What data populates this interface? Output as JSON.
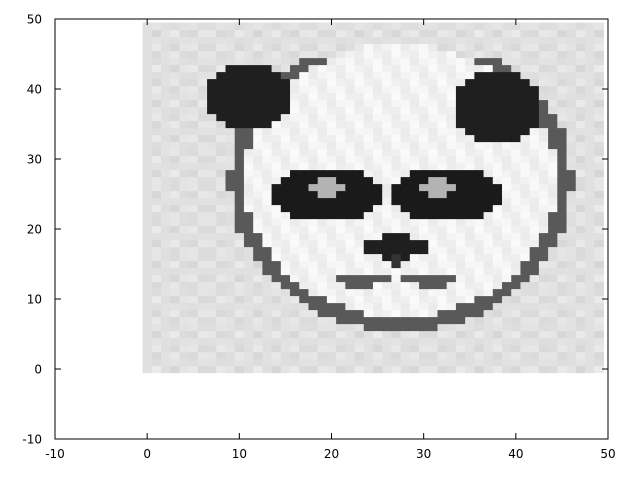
{
  "chart_data": {
    "type": "heatmap",
    "title": "",
    "xlabel": "",
    "ylabel": "",
    "xlim": [
      -10,
      50
    ],
    "ylim": [
      -10,
      50
    ],
    "xticks": [
      -10,
      0,
      10,
      20,
      30,
      40,
      50
    ],
    "yticks": [
      -10,
      0,
      10,
      20,
      30,
      40,
      50
    ],
    "grid": false,
    "legend": "none",
    "image_extent": {
      "x": [
        0,
        49
      ],
      "y": [
        0,
        49
      ]
    },
    "grid_size": 50,
    "colormap": "gray",
    "value_range": [
      0,
      1
    ],
    "description_values": "grayscale image of a panda face: light gray background (~0.88), black ears upper-left and upper-right, black eye patches with light pupils, black nose and thin mouth, dark outline of the face"
  },
  "colors": {
    "background": "#e1e1e1",
    "dark": "#1a1a1a",
    "frame": "#000000"
  }
}
